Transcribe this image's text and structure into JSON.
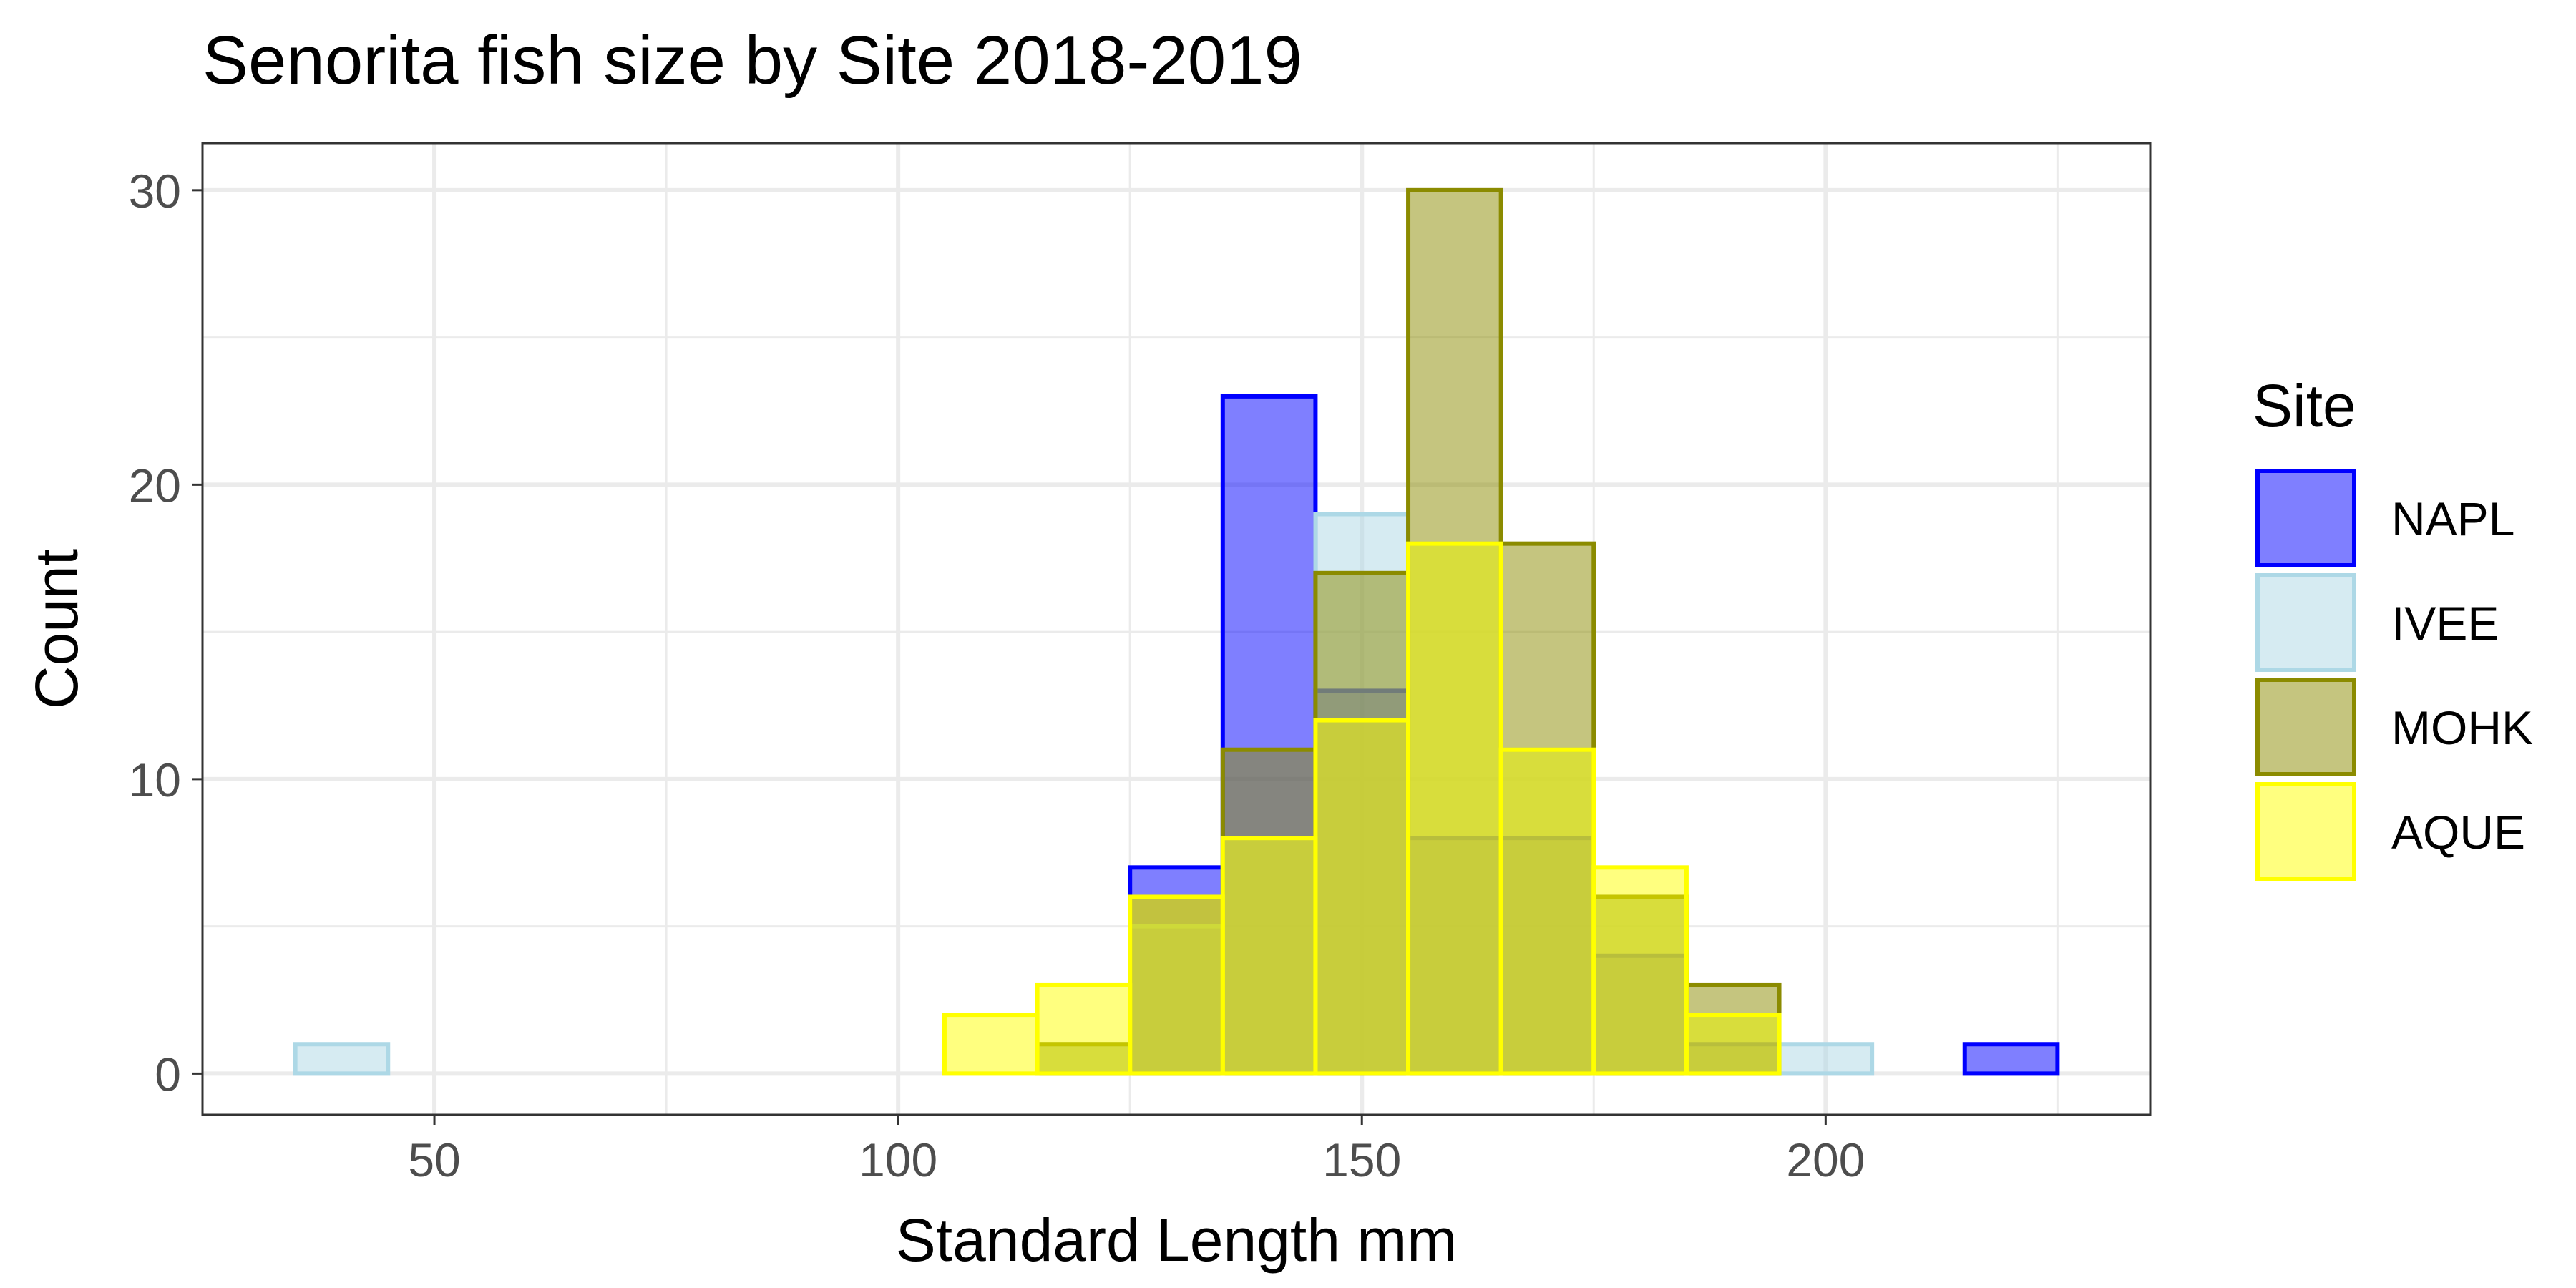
{
  "chart_data": {
    "type": "bar",
    "title": "Senorita fish size by Site 2018-2019",
    "xlabel": "Standard Length mm",
    "ylabel": "Count",
    "xlim": [
      25,
      235
    ],
    "ylim": [
      -1.4,
      31.6
    ],
    "x_ticks": [
      50,
      100,
      150,
      200
    ],
    "y_ticks": [
      0,
      10,
      20,
      30
    ],
    "grid": true,
    "legend": {
      "title": "Site",
      "position": "right"
    },
    "bin_width": 10,
    "bins": [
      40,
      50,
      60,
      70,
      80,
      90,
      100,
      110,
      120,
      130,
      140,
      150,
      160,
      170,
      180,
      190,
      200,
      210,
      220
    ],
    "series": [
      {
        "name": "NAPL",
        "fill": "#0000FF",
        "stroke": "#0000FF",
        "values": [
          0,
          0,
          0,
          0,
          0,
          0,
          0,
          0,
          0,
          7,
          23,
          13,
          8,
          8,
          4,
          1,
          0,
          0,
          1
        ]
      },
      {
        "name": "IVEE",
        "fill": "#ADD8E6",
        "stroke": "#ADD8E6",
        "values": [
          1,
          0,
          0,
          0,
          0,
          0,
          0,
          0,
          1,
          5,
          8,
          19,
          18,
          11,
          6,
          2,
          1,
          0,
          0
        ]
      },
      {
        "name": "MOHK",
        "fill": "#8B8B00",
        "stroke": "#8B8B00",
        "values": [
          0,
          0,
          0,
          0,
          0,
          0,
          0,
          0,
          1,
          6,
          11,
          17,
          30,
          18,
          6,
          3,
          0,
          0,
          0
        ]
      },
      {
        "name": "AQUE",
        "fill": "#FFFF00",
        "stroke": "#FFFF00",
        "values": [
          0,
          0,
          0,
          0,
          0,
          0,
          0,
          2,
          3,
          6,
          8,
          12,
          18,
          11,
          7,
          2,
          0,
          0,
          0
        ]
      }
    ]
  }
}
